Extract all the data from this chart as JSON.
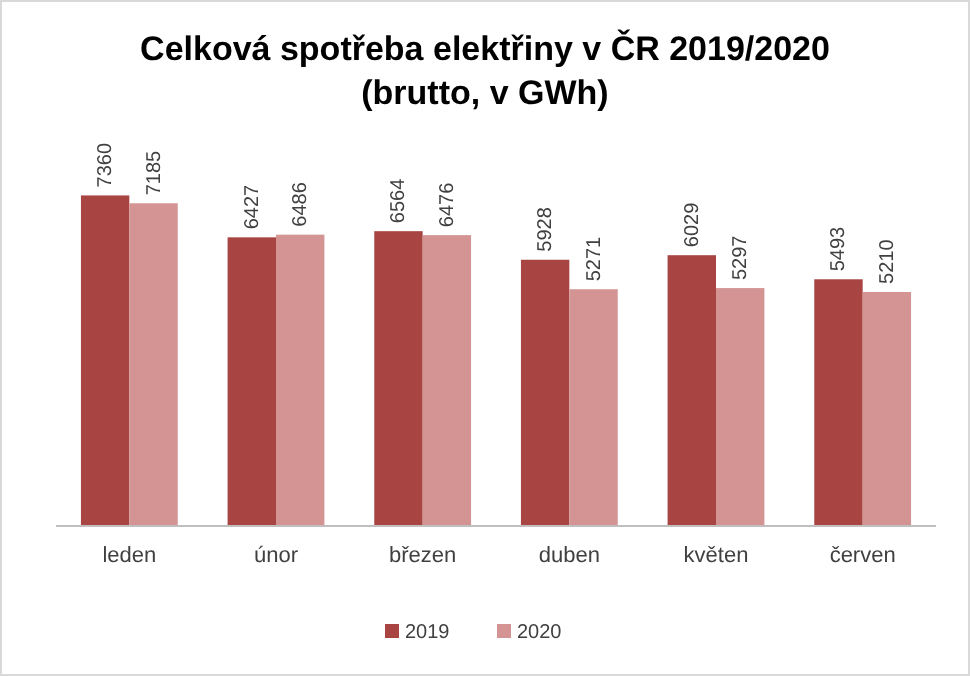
{
  "chart_data": {
    "type": "bar",
    "title": "Celková spotřeba elektřiny v ČR 2019/2020",
    "subtitle": "(brutto, v GWh)",
    "categories": [
      "leden",
      "únor",
      "březen",
      "duben",
      "květen",
      "červen"
    ],
    "series": [
      {
        "name": "2019",
        "color": "#a84543",
        "values": [
          7360,
          6427,
          6564,
          5928,
          6029,
          5493
        ]
      },
      {
        "name": "2020",
        "color": "#d39493",
        "values": [
          7185,
          6486,
          6476,
          5271,
          5297,
          5210
        ]
      }
    ],
    "data_labels": true,
    "legend": "bottom",
    "grid": false
  }
}
